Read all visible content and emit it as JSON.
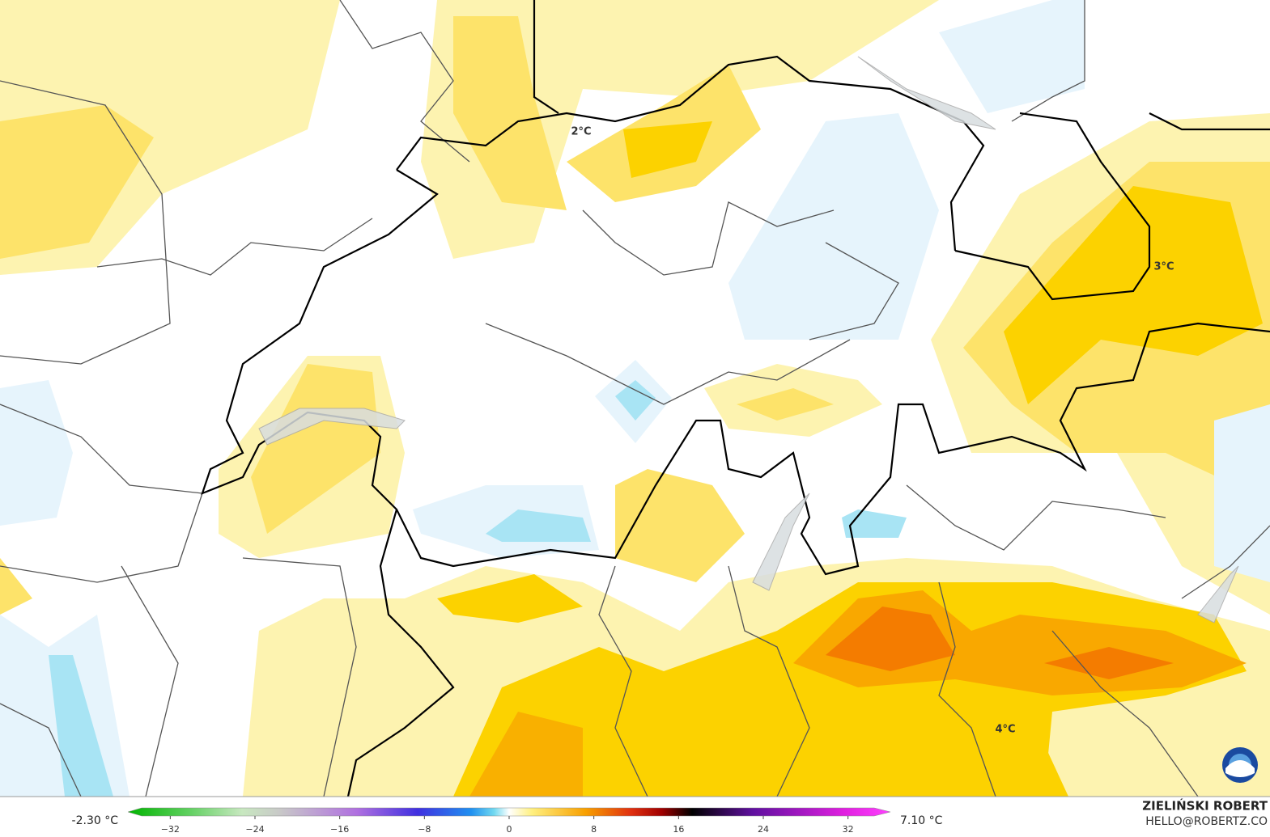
{
  "map": {
    "labels": [
      "2°C",
      "3°C",
      "4°C"
    ]
  },
  "colorbar": {
    "min_label": "-2.30 °C",
    "max_label": "7.10 °C",
    "lim": [
      -36,
      36
    ],
    "ticks": [
      {
        "value": -32,
        "label": "−32"
      },
      {
        "value": -24,
        "label": "−24"
      },
      {
        "value": -16,
        "label": "−16"
      },
      {
        "value": -8,
        "label": "−8"
      },
      0,
      8,
      16,
      24,
      32
    ]
  },
  "credit": {
    "author": "ZIELIŃSKI ROBERT",
    "email": "HELLO@ROBERTZ.CO"
  }
}
